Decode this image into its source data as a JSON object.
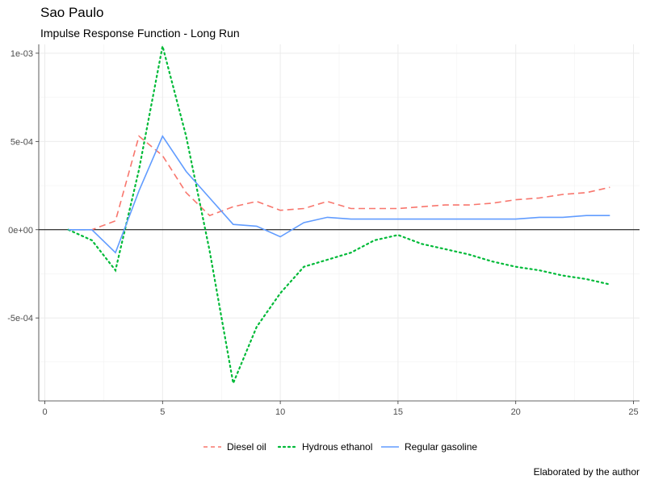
{
  "chart_data": {
    "type": "line",
    "title": "Sao Paulo",
    "subtitle": "Impulse Response Function - Long Run",
    "caption": "Elaborated by the author",
    "xlabel": "",
    "ylabel": "",
    "xlim": [
      0,
      25
    ],
    "ylim": [
      -0.00097,
      0.00105
    ],
    "x_ticks": [
      0,
      5,
      10,
      15,
      20,
      25
    ],
    "y_ticks": [
      -0.0005,
      0,
      0.0005,
      0.001
    ],
    "y_tick_labels": [
      "-5e-04",
      "0e+00",
      "5e-04",
      "1e-03"
    ],
    "grid": true,
    "reference_line_y": 0,
    "legend_position": "bottom",
    "x": [
      1,
      2,
      3,
      4,
      5,
      6,
      7,
      8,
      9,
      10,
      11,
      12,
      13,
      14,
      15,
      16,
      17,
      18,
      19,
      20,
      21,
      22,
      23,
      24
    ],
    "series": [
      {
        "name": "Diesel oil",
        "color": "#f8766d",
        "dash": "longdash",
        "values": [
          0,
          0,
          5e-05,
          0.00053,
          0.00042,
          0.00021,
          8e-05,
          0.00013,
          0.00016,
          0.00011,
          0.00012,
          0.00016,
          0.00012,
          0.00012,
          0.00012,
          0.00013,
          0.00014,
          0.00014,
          0.00015,
          0.00017,
          0.00018,
          0.0002,
          0.00021,
          0.00024
        ]
      },
      {
        "name": "Hydrous ethanol",
        "color": "#00ba38",
        "dash": "dotted",
        "values": [
          0,
          -6e-05,
          -0.00023,
          0.00034,
          0.00104,
          0.00053,
          -0.00012,
          -0.00087,
          -0.00055,
          -0.00036,
          -0.00021,
          -0.00017,
          -0.00013,
          -6e-05,
          -3e-05,
          -8e-05,
          -0.00011,
          -0.00014,
          -0.00018,
          -0.00021,
          -0.00023,
          -0.00026,
          -0.00028,
          -0.00031
        ]
      },
      {
        "name": "Regular gasoline",
        "color": "#619cff",
        "dash": "solid",
        "values": [
          0,
          0,
          -0.00013,
          0.00022,
          0.00053,
          0.00033,
          0.00018,
          3e-05,
          2e-05,
          -4e-05,
          4e-05,
          7e-05,
          6e-05,
          6e-05,
          6e-05,
          6e-05,
          6e-05,
          6e-05,
          6e-05,
          6e-05,
          7e-05,
          7e-05,
          8e-05,
          8e-05
        ]
      }
    ]
  }
}
